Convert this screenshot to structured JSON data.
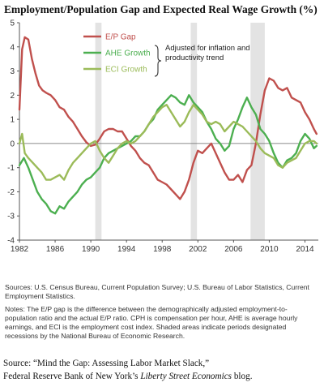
{
  "chart_data": {
    "type": "line",
    "title": "Employment/Population Gap and Expected Real Wage Growth (%)",
    "xlim": [
      1982,
      2015.5
    ],
    "ylim": [
      -4,
      5
    ],
    "x_ticks": [
      1982,
      1986,
      1990,
      1994,
      1998,
      2002,
      2006,
      2010,
      2014
    ],
    "y_ticks": [
      5,
      4,
      3,
      2,
      1,
      0,
      -1,
      -2,
      -3,
      -4
    ],
    "grid": false,
    "recessions": [
      [
        1990.5,
        1991.2
      ],
      [
        2001.2,
        2001.9
      ],
      [
        2007.9,
        2009.5
      ]
    ],
    "legend_position": "top-center",
    "annotation": "Adjusted for inflation and productivity trend",
    "annotation_series": [
      "AHE Growth",
      "ECI Growth"
    ],
    "series": [
      {
        "name": "E/P Gap",
        "color": "#c0504d",
        "points": [
          [
            1982,
            1.4
          ],
          [
            1982.3,
            3.9
          ],
          [
            1982.6,
            4.4
          ],
          [
            1983,
            4.3
          ],
          [
            1983.4,
            3.5
          ],
          [
            1983.8,
            2.9
          ],
          [
            1984.2,
            2.4
          ],
          [
            1984.6,
            2.2
          ],
          [
            1985,
            2.1
          ],
          [
            1985.5,
            2.0
          ],
          [
            1986,
            1.8
          ],
          [
            1986.5,
            1.5
          ],
          [
            1987,
            1.4
          ],
          [
            1987.5,
            1.1
          ],
          [
            1988,
            0.9
          ],
          [
            1988.5,
            0.6
          ],
          [
            1989,
            0.3
          ],
          [
            1989.5,
            0.05
          ],
          [
            1990,
            -0.1
          ],
          [
            1990.5,
            -0.05
          ],
          [
            1991,
            0.2
          ],
          [
            1991.5,
            0.5
          ],
          [
            1992,
            0.6
          ],
          [
            1992.5,
            0.6
          ],
          [
            1993,
            0.5
          ],
          [
            1993.5,
            0.5
          ],
          [
            1994,
            0.2
          ],
          [
            1994.5,
            -0.1
          ],
          [
            1995,
            -0.3
          ],
          [
            1995.5,
            -0.6
          ],
          [
            1996,
            -0.8
          ],
          [
            1996.5,
            -0.9
          ],
          [
            1997,
            -1.2
          ],
          [
            1997.5,
            -1.5
          ],
          [
            1998,
            -1.6
          ],
          [
            1998.5,
            -1.7
          ],
          [
            1999,
            -1.9
          ],
          [
            1999.5,
            -2.1
          ],
          [
            2000,
            -2.3
          ],
          [
            2000.5,
            -2.0
          ],
          [
            2001,
            -1.5
          ],
          [
            2001.5,
            -0.8
          ],
          [
            2002,
            -0.3
          ],
          [
            2002.5,
            -0.4
          ],
          [
            2003,
            -0.2
          ],
          [
            2003.5,
            0.0
          ],
          [
            2004,
            -0.4
          ],
          [
            2004.5,
            -0.8
          ],
          [
            2005,
            -1.2
          ],
          [
            2005.5,
            -1.5
          ],
          [
            2006,
            -1.5
          ],
          [
            2006.5,
            -1.3
          ],
          [
            2007,
            -1.6
          ],
          [
            2007.5,
            -1.1
          ],
          [
            2008,
            -0.9
          ],
          [
            2008.5,
            0.0
          ],
          [
            2009,
            1.2
          ],
          [
            2009.5,
            2.2
          ],
          [
            2010,
            2.7
          ],
          [
            2010.5,
            2.6
          ],
          [
            2011,
            2.3
          ],
          [
            2011.5,
            2.2
          ],
          [
            2012,
            2.3
          ],
          [
            2012.5,
            1.9
          ],
          [
            2013,
            1.8
          ],
          [
            2013.5,
            1.7
          ],
          [
            2014,
            1.3
          ],
          [
            2014.5,
            1.0
          ],
          [
            2015,
            0.6
          ],
          [
            2015.3,
            0.4
          ]
        ]
      },
      {
        "name": "AHE Growth",
        "color": "#4caf50",
        "points": [
          [
            1982,
            -0.9
          ],
          [
            1982.5,
            -0.6
          ],
          [
            1983,
            -1.0
          ],
          [
            1983.5,
            -1.5
          ],
          [
            1984,
            -2.0
          ],
          [
            1984.5,
            -2.3
          ],
          [
            1985,
            -2.5
          ],
          [
            1985.5,
            -2.8
          ],
          [
            1986,
            -2.9
          ],
          [
            1986.5,
            -2.6
          ],
          [
            1987,
            -2.7
          ],
          [
            1987.5,
            -2.4
          ],
          [
            1988,
            -2.2
          ],
          [
            1988.5,
            -2.0
          ],
          [
            1989,
            -1.7
          ],
          [
            1989.5,
            -1.5
          ],
          [
            1990,
            -1.4
          ],
          [
            1990.5,
            -1.2
          ],
          [
            1991,
            -1.0
          ],
          [
            1991.5,
            -0.6
          ],
          [
            1992,
            -0.4
          ],
          [
            1992.5,
            -0.3
          ],
          [
            1993,
            -0.2
          ],
          [
            1993.5,
            -0.1
          ],
          [
            1994,
            0.0
          ],
          [
            1994.5,
            0.1
          ],
          [
            1995,
            0.3
          ],
          [
            1995.5,
            0.3
          ],
          [
            1996,
            0.5
          ],
          [
            1996.5,
            0.8
          ],
          [
            1997,
            1.0
          ],
          [
            1997.5,
            1.4
          ],
          [
            1998,
            1.6
          ],
          [
            1998.5,
            1.8
          ],
          [
            1999,
            2.0
          ],
          [
            1999.5,
            1.9
          ],
          [
            2000,
            1.7
          ],
          [
            2000.5,
            1.6
          ],
          [
            2001,
            2.0
          ],
          [
            2001.5,
            1.7
          ],
          [
            2002,
            1.5
          ],
          [
            2002.5,
            1.3
          ],
          [
            2003,
            0.9
          ],
          [
            2003.5,
            0.6
          ],
          [
            2004,
            0.2
          ],
          [
            2004.5,
            0.0
          ],
          [
            2005,
            -0.3
          ],
          [
            2005.5,
            -0.1
          ],
          [
            2006,
            0.6
          ],
          [
            2006.5,
            1.0
          ],
          [
            2007,
            1.5
          ],
          [
            2007.5,
            1.9
          ],
          [
            2008,
            1.5
          ],
          [
            2008.5,
            1.2
          ],
          [
            2009,
            0.6
          ],
          [
            2009.5,
            0.4
          ],
          [
            2010,
            0.1
          ],
          [
            2010.5,
            -0.4
          ],
          [
            2011,
            -0.8
          ],
          [
            2011.5,
            -1.0
          ],
          [
            2012,
            -0.7
          ],
          [
            2012.5,
            -0.6
          ],
          [
            2013,
            -0.4
          ],
          [
            2013.5,
            0.1
          ],
          [
            2014,
            0.4
          ],
          [
            2014.5,
            0.2
          ],
          [
            2015,
            -0.2
          ],
          [
            2015.3,
            -0.1
          ]
        ]
      },
      {
        "name": "ECI Growth",
        "color": "#9bbb59",
        "points": [
          [
            1982,
            0.0
          ],
          [
            1982.3,
            0.4
          ],
          [
            1982.6,
            -0.4
          ],
          [
            1983,
            -0.6
          ],
          [
            1983.5,
            -0.8
          ],
          [
            1984,
            -1.0
          ],
          [
            1984.5,
            -1.2
          ],
          [
            1985,
            -1.5
          ],
          [
            1985.5,
            -1.5
          ],
          [
            1986,
            -1.4
          ],
          [
            1986.5,
            -1.3
          ],
          [
            1987,
            -1.5
          ],
          [
            1987.5,
            -1.1
          ],
          [
            1988,
            -0.8
          ],
          [
            1988.5,
            -0.6
          ],
          [
            1989,
            -0.4
          ],
          [
            1989.5,
            -0.2
          ],
          [
            1990,
            0.0
          ],
          [
            1990.5,
            0.1
          ],
          [
            1991,
            -0.3
          ],
          [
            1991.5,
            -0.6
          ],
          [
            1992,
            -0.8
          ],
          [
            1992.5,
            -0.5
          ],
          [
            1993,
            -0.2
          ],
          [
            1993.5,
            0.0
          ],
          [
            1994,
            0.1
          ],
          [
            1994.5,
            0.0
          ],
          [
            1995,
            0.1
          ],
          [
            1995.5,
            0.3
          ],
          [
            1996,
            0.5
          ],
          [
            1996.5,
            0.8
          ],
          [
            1997,
            1.1
          ],
          [
            1997.5,
            1.3
          ],
          [
            1998,
            1.5
          ],
          [
            1998.5,
            1.6
          ],
          [
            1999,
            1.3
          ],
          [
            1999.5,
            1.0
          ],
          [
            2000,
            0.7
          ],
          [
            2000.5,
            0.9
          ],
          [
            2001,
            1.3
          ],
          [
            2001.5,
            1.6
          ],
          [
            2002,
            1.4
          ],
          [
            2002.5,
            1.2
          ],
          [
            2003,
            0.9
          ],
          [
            2003.5,
            0.8
          ],
          [
            2004,
            0.9
          ],
          [
            2004.5,
            0.8
          ],
          [
            2005,
            0.5
          ],
          [
            2005.5,
            0.7
          ],
          [
            2006,
            0.9
          ],
          [
            2006.5,
            0.8
          ],
          [
            2007,
            0.7
          ],
          [
            2007.5,
            0.5
          ],
          [
            2008,
            0.3
          ],
          [
            2008.5,
            0.1
          ],
          [
            2009,
            -0.2
          ],
          [
            2009.5,
            -0.4
          ],
          [
            2010,
            -0.5
          ],
          [
            2010.5,
            -0.6
          ],
          [
            2011,
            -0.9
          ],
          [
            2011.5,
            -1.0
          ],
          [
            2012,
            -0.8
          ],
          [
            2012.5,
            -0.7
          ],
          [
            2013,
            -0.6
          ],
          [
            2013.5,
            -0.3
          ],
          [
            2014,
            0.0
          ],
          [
            2014.5,
            0.1
          ],
          [
            2015,
            0.1
          ],
          [
            2015.3,
            0.0
          ]
        ]
      }
    ]
  },
  "footer": {
    "sources": "Sources: U.S. Census Bureau, Current Population Survey; U.S. Bureau of Labor Statistics, Current Employment Statistics.",
    "notes": "Notes: The E/P gap is the difference between the demographically adjusted employment-to-population ratio and the actual E/P ratio. CPH is compensation per hour, AHE is average hourly earnings, and ECI is the employment cost index. Shaded areas indicate periods designated recessions by the National Bureau of Economic Research.",
    "source_line1": "Source: “Mind the Gap: Assessing Labor Market Slack,”",
    "source_line2_prefix": "Federal Reserve Bank of New York’s ",
    "source_line2_italic": "Liberty Street Economics",
    "source_line2_suffix": " blog."
  }
}
